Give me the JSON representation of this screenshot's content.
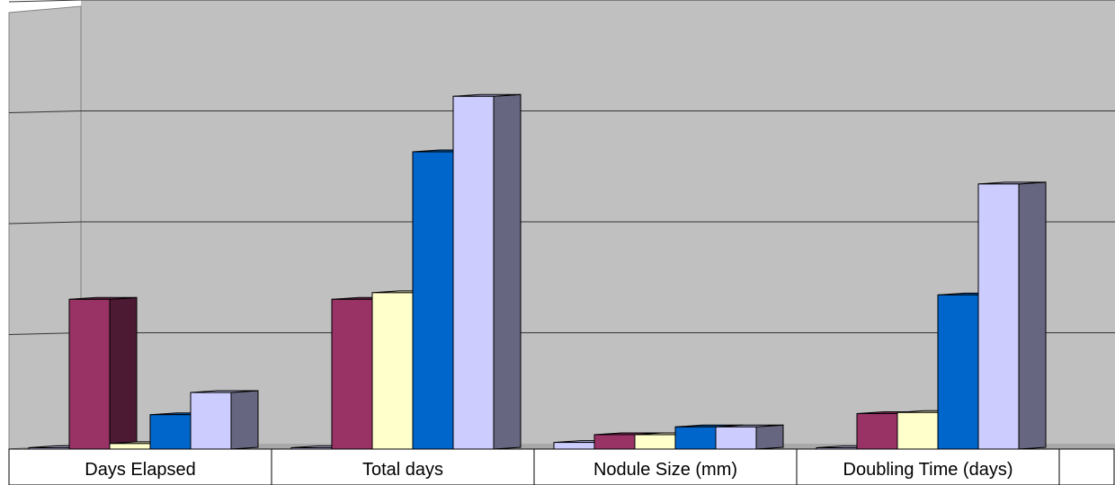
{
  "chart_data": {
    "type": "bar",
    "style": "3d-clustered-column",
    "categories": [
      "Days Elapsed",
      "Total days",
      "Nodule Size (mm)",
      "Doubling Time (days)"
    ],
    "series": [
      {
        "values": [
          0,
          0,
          6,
          0
        ],
        "color": "#ccccff"
      },
      {
        "values": [
          135,
          135,
          13,
          32
        ],
        "color": "#993366"
      },
      {
        "values": [
          5,
          141,
          13,
          33
        ],
        "color": "#ffffcc"
      },
      {
        "values": [
          31,
          268,
          20,
          139
        ],
        "color": "#0066cc"
      },
      {
        "values": [
          51,
          318,
          20,
          239
        ],
        "color": "#ccccff"
      }
    ],
    "ylim": [
      0,
      400
    ],
    "gridlines": true,
    "plot_background": "#c0c0c0",
    "legend": "none",
    "title": "",
    "xlabel": "",
    "ylabel": ""
  }
}
